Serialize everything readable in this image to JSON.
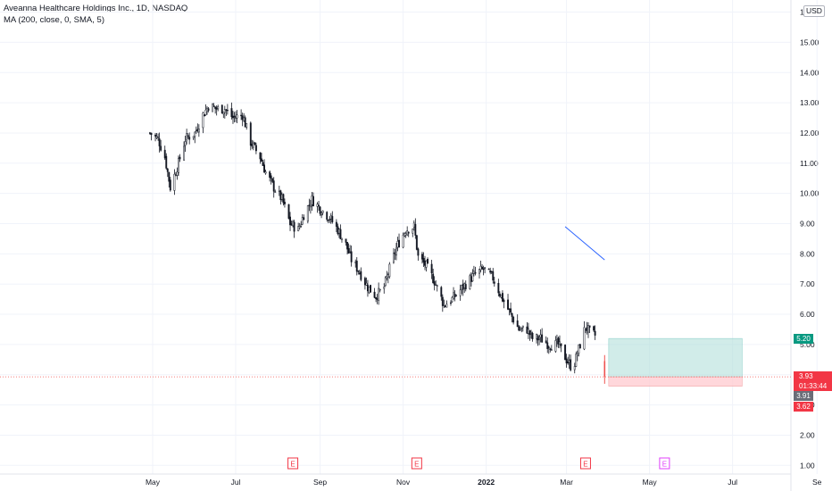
{
  "legend": {
    "title": "Aveanna Healthcare Holdings Inc., 1D, NASDAQ",
    "indicator": "MA (200, close, 0, SMA, 5)"
  },
  "currency_button": "USD",
  "price_tags": {
    "target": "5.20",
    "last_price": "3.93",
    "countdown": "01:33:44",
    "prev_price": "3.91",
    "stop": "3.62"
  },
  "colors": {
    "up": "#26a69a",
    "down": "#ef5350",
    "candle": "#131722",
    "ma": "#2962ff",
    "profit_zone": "#b2dfdb",
    "loss_zone": "#ffcdd2",
    "earnings": "#f23645",
    "earnings_future": "#e040fb"
  },
  "earnings_markers": [
    {
      "label": "E",
      "date": "2021-08-12",
      "future": false
    },
    {
      "label": "E",
      "date": "2021-11-11",
      "future": false
    },
    {
      "label": "E",
      "date": "2022-03-15",
      "future": false
    },
    {
      "label": "E",
      "date": "2022-05-12",
      "future": true
    }
  ],
  "chart_data": {
    "type": "candlestick",
    "title": "Aveanna Healthcare Holdings Inc., 1D, NASDAQ",
    "y_ticks": [
      "1.00",
      "2.00",
      "3.00",
      "4.00",
      "5.00",
      "6.00",
      "7.00",
      "8.00",
      "9.00",
      "10.00",
      "11.00",
      "12.00",
      "13.00",
      "14.00",
      "15.00",
      "16.00"
    ],
    "x_ticks": [
      "May",
      "Jul",
      "Sep",
      "Nov",
      "2022",
      "Mar",
      "May",
      "Jul",
      "Se"
    ],
    "ylim": [
      0.6,
      16.2
    ],
    "grid": true,
    "series": [
      {
        "name": "Aveanna Healthcare Holdings Inc.",
        "type": "ohlc_close_path",
        "x": [
          "2021-04-29",
          "2021-05-05",
          "2021-05-10",
          "2021-05-14",
          "2021-05-20",
          "2021-05-25",
          "2021-06-01",
          "2021-06-07",
          "2021-06-11",
          "2021-06-17",
          "2021-06-23",
          "2021-06-29",
          "2021-07-06",
          "2021-07-12",
          "2021-07-19",
          "2021-07-23",
          "2021-07-29",
          "2021-08-04",
          "2021-08-10",
          "2021-08-16",
          "2021-08-20",
          "2021-08-26",
          "2021-09-01",
          "2021-09-08",
          "2021-09-14",
          "2021-09-20",
          "2021-09-24",
          "2021-09-30",
          "2021-10-06",
          "2021-10-12",
          "2021-10-18",
          "2021-10-22",
          "2021-10-28",
          "2021-11-03",
          "2021-11-09",
          "2021-11-12",
          "2021-11-18",
          "2021-11-24",
          "2021-12-01",
          "2021-12-07",
          "2021-12-13",
          "2021-12-17",
          "2021-12-23",
          "2021-12-30",
          "2022-01-06",
          "2022-01-12",
          "2022-01-19",
          "2022-01-25",
          "2022-01-31",
          "2022-02-04",
          "2022-02-10",
          "2022-02-16",
          "2022-02-23",
          "2022-03-01",
          "2022-03-04",
          "2022-03-07",
          "2022-03-11",
          "2022-03-15",
          "2022-03-18",
          "2022-03-22",
          "2022-03-29"
        ],
        "values": [
          12.0,
          11.8,
          11.2,
          10.2,
          11.0,
          11.8,
          12.0,
          12.6,
          12.9,
          12.8,
          12.8,
          12.5,
          12.6,
          11.7,
          11.2,
          10.7,
          10.2,
          9.8,
          9.0,
          8.8,
          9.3,
          9.8,
          9.5,
          9.2,
          8.8,
          8.3,
          7.8,
          7.4,
          6.9,
          6.6,
          6.9,
          7.5,
          8.3,
          8.8,
          8.9,
          7.9,
          7.6,
          7.1,
          6.3,
          6.5,
          6.8,
          7.0,
          7.3,
          7.5,
          7.2,
          6.6,
          6.0,
          5.5,
          5.5,
          5.2,
          5.2,
          5.0,
          5.0,
          4.5,
          4.3,
          4.4,
          5.0,
          5.6,
          5.4,
          5.3,
          3.93
        ]
      },
      {
        "name": "MA (200, close, 0, SMA, 5)",
        "type": "line",
        "x": [
          "2022-02-28",
          "2022-03-29"
        ],
        "values": [
          8.9,
          7.8
        ]
      }
    ],
    "position": {
      "entry": 3.93,
      "target": 5.2,
      "stop": 3.62,
      "start": "2022-04-01",
      "end": "2022-07-08"
    }
  }
}
